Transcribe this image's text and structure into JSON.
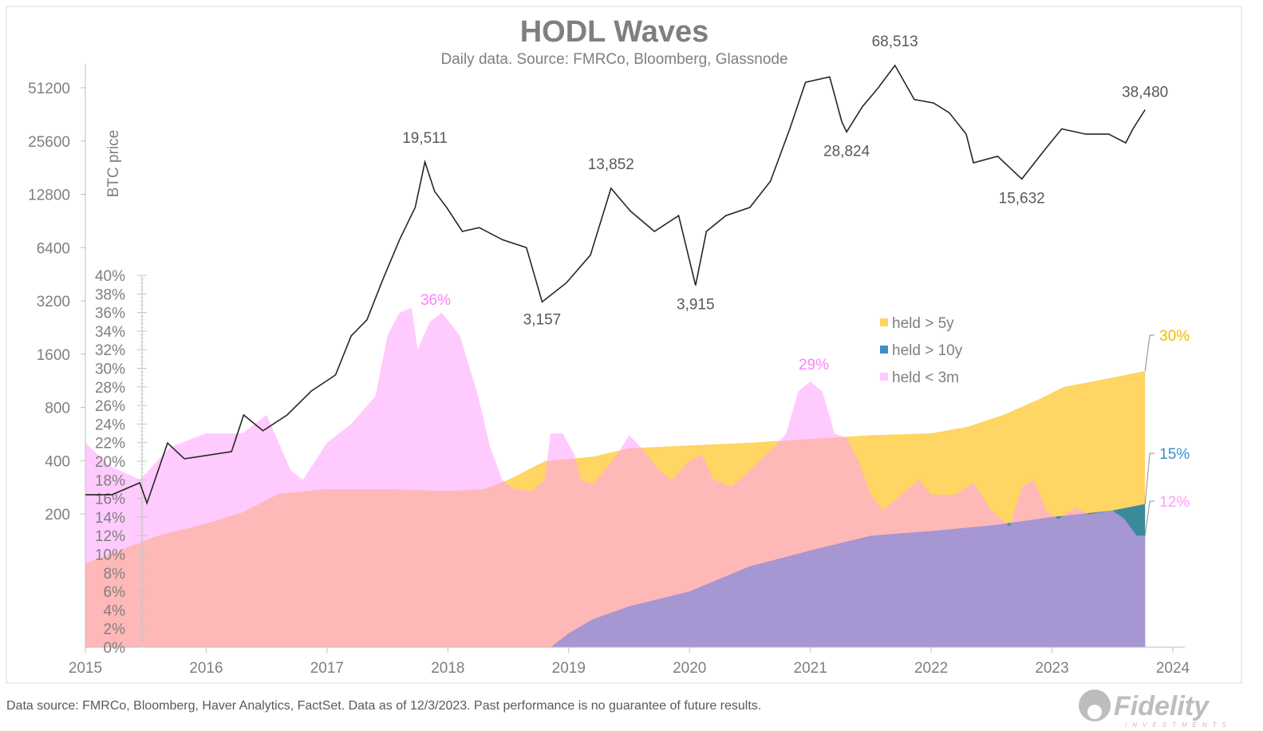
{
  "chart_data": {
    "type": "area",
    "title": "HODL Waves",
    "subtitle": "Daily data.  Source: FMRCo, Bloomberg, Glassnode",
    "xlim": [
      2015,
      2024
    ],
    "x_ticks": [
      "2015",
      "2016",
      "2017",
      "2018",
      "2019",
      "2020",
      "2021",
      "2022",
      "2023",
      "2024"
    ],
    "y_left_label": "BTC price",
    "y_left_scale": "log2",
    "y_left_ticks": [
      "200",
      "400",
      "800",
      "1600",
      "3200",
      "6400",
      "12800",
      "25600",
      "51200"
    ],
    "y_pct_ticks": [
      "0%",
      "2%",
      "4%",
      "6%",
      "8%",
      "10%",
      "12%",
      "14%",
      "16%",
      "18%",
      "20%",
      "22%",
      "24%",
      "26%",
      "28%",
      "30%",
      "32%",
      "34%",
      "36%",
      "38%",
      "40%"
    ],
    "y_pct_range": [
      0,
      40
    ],
    "legend": {
      "position": "right-center",
      "items": [
        {
          "label": "held > 5y",
          "color": "#FFD45E"
        },
        {
          "label": "held > 10y",
          "color": "#3A8FC9"
        },
        {
          "label": "held < 3m",
          "color": "#FFCBFF"
        }
      ]
    },
    "series": [
      {
        "name": "held > 5y",
        "color": "#FFD563",
        "points": [
          [
            2015.0,
            9
          ],
          [
            2015.3,
            10.5
          ],
          [
            2015.6,
            12
          ],
          [
            2016.0,
            13.3
          ],
          [
            2016.3,
            14.5
          ],
          [
            2016.6,
            16.5
          ],
          [
            2017.0,
            17
          ],
          [
            2017.5,
            17
          ],
          [
            2018.0,
            16.8
          ],
          [
            2018.3,
            17
          ],
          [
            2018.5,
            18
          ],
          [
            2018.8,
            20
          ],
          [
            2019.2,
            20.5
          ],
          [
            2019.5,
            21.4
          ],
          [
            2020.0,
            21.7
          ],
          [
            2020.5,
            22
          ],
          [
            2021.0,
            22.4
          ],
          [
            2021.5,
            22.8
          ],
          [
            2022.0,
            23
          ],
          [
            2022.3,
            23.7
          ],
          [
            2022.6,
            25
          ],
          [
            2022.9,
            26.7
          ],
          [
            2023.1,
            28
          ],
          [
            2023.5,
            29
          ],
          [
            2023.77,
            29.7
          ]
        ]
      },
      {
        "name": "held > 10y",
        "color": "#3A8A9A",
        "points": [
          [
            2015.0,
            0
          ],
          [
            2018.85,
            0
          ],
          [
            2019.0,
            1.5
          ],
          [
            2019.2,
            3
          ],
          [
            2019.5,
            4.4
          ],
          [
            2020.0,
            6
          ],
          [
            2020.5,
            8.7
          ],
          [
            2021.0,
            10.4
          ],
          [
            2021.5,
            12
          ],
          [
            2022.0,
            12.5
          ],
          [
            2022.5,
            13.1
          ],
          [
            2023.0,
            14
          ],
          [
            2023.5,
            14.7
          ],
          [
            2023.77,
            15.4
          ]
        ]
      },
      {
        "name": "held < 3m",
        "color": "#FFA0FF",
        "points": [
          [
            2015.0,
            22
          ],
          [
            2015.2,
            19.5
          ],
          [
            2015.45,
            18
          ],
          [
            2015.7,
            21.5
          ],
          [
            2016.0,
            23
          ],
          [
            2016.3,
            23
          ],
          [
            2016.5,
            25
          ],
          [
            2016.7,
            19
          ],
          [
            2016.8,
            18
          ],
          [
            2017.0,
            22
          ],
          [
            2017.2,
            24
          ],
          [
            2017.4,
            27
          ],
          [
            2017.5,
            33.5
          ],
          [
            2017.6,
            36
          ],
          [
            2017.7,
            36.5
          ],
          [
            2017.75,
            32
          ],
          [
            2017.85,
            35
          ],
          [
            2017.95,
            36
          ],
          [
            2018.1,
            33.5
          ],
          [
            2018.25,
            27
          ],
          [
            2018.35,
            21.5
          ],
          [
            2018.45,
            18
          ],
          [
            2018.55,
            17
          ],
          [
            2018.7,
            16.8
          ],
          [
            2018.8,
            18
          ],
          [
            2018.85,
            23
          ],
          [
            2018.95,
            23
          ],
          [
            2019.05,
            20.7
          ],
          [
            2019.1,
            18
          ],
          [
            2019.2,
            17.5
          ],
          [
            2019.4,
            20.7
          ],
          [
            2019.5,
            22.8
          ],
          [
            2019.6,
            21.5
          ],
          [
            2019.75,
            19
          ],
          [
            2019.85,
            18
          ],
          [
            2020.0,
            20
          ],
          [
            2020.1,
            20.7
          ],
          [
            2020.2,
            18
          ],
          [
            2020.35,
            17.3
          ],
          [
            2020.5,
            19
          ],
          [
            2020.7,
            21.5
          ],
          [
            2020.8,
            23
          ],
          [
            2020.9,
            27.5
          ],
          [
            2021.0,
            28.6
          ],
          [
            2021.1,
            27.5
          ],
          [
            2021.2,
            23
          ],
          [
            2021.3,
            22.5
          ],
          [
            2021.4,
            20
          ],
          [
            2021.5,
            16.4
          ],
          [
            2021.6,
            14.7
          ],
          [
            2021.75,
            16.4
          ],
          [
            2021.9,
            18
          ],
          [
            2022.0,
            16.4
          ],
          [
            2022.2,
            16.4
          ],
          [
            2022.35,
            17.7
          ],
          [
            2022.5,
            14.7
          ],
          [
            2022.65,
            13
          ],
          [
            2022.75,
            17.2
          ],
          [
            2022.85,
            18
          ],
          [
            2022.95,
            14.7
          ],
          [
            2023.05,
            13.8
          ],
          [
            2023.2,
            15
          ],
          [
            2023.3,
            14.3
          ],
          [
            2023.5,
            14.7
          ],
          [
            2023.6,
            13.8
          ],
          [
            2023.7,
            12
          ],
          [
            2023.77,
            12
          ]
        ]
      },
      {
        "name": "BTC price",
        "color": "#262626",
        "axis": "left",
        "points": [
          [
            2015.0,
            257
          ],
          [
            2015.22,
            257
          ],
          [
            2015.45,
            300
          ],
          [
            2015.51,
            230
          ],
          [
            2015.68,
            503
          ],
          [
            2015.82,
            410
          ],
          [
            2016.21,
            450
          ],
          [
            2016.31,
            725
          ],
          [
            2016.47,
            590
          ],
          [
            2016.67,
            725
          ],
          [
            2016.87,
            990
          ],
          [
            2017.07,
            1220
          ],
          [
            2017.2,
            2030
          ],
          [
            2017.33,
            2500
          ],
          [
            2017.46,
            4200
          ],
          [
            2017.6,
            7100
          ],
          [
            2017.73,
            10800
          ],
          [
            2017.81,
            19511
          ],
          [
            2017.89,
            13300
          ],
          [
            2017.99,
            10800
          ],
          [
            2018.12,
            7900
          ],
          [
            2018.26,
            8300
          ],
          [
            2018.45,
            7100
          ],
          [
            2018.65,
            6400
          ],
          [
            2018.78,
            3157
          ],
          [
            2018.98,
            4040
          ],
          [
            2019.18,
            5800
          ],
          [
            2019.35,
            13852
          ],
          [
            2019.51,
            10300
          ],
          [
            2019.71,
            7900
          ],
          [
            2019.91,
            9700
          ],
          [
            2020.05,
            3915
          ],
          [
            2020.14,
            7900
          ],
          [
            2020.3,
            9700
          ],
          [
            2020.5,
            10800
          ],
          [
            2020.67,
            15200
          ],
          [
            2020.83,
            30000
          ],
          [
            2020.96,
            55000
          ],
          [
            2021.16,
            59000
          ],
          [
            2021.26,
            33000
          ],
          [
            2021.3,
            28824
          ],
          [
            2021.43,
            40000
          ],
          [
            2021.56,
            51000
          ],
          [
            2021.7,
            68513
          ],
          [
            2021.86,
            44000
          ],
          [
            2022.02,
            42000
          ],
          [
            2022.15,
            37000
          ],
          [
            2022.29,
            28000
          ],
          [
            2022.35,
            19300
          ],
          [
            2022.55,
            21000
          ],
          [
            2022.75,
            15632
          ],
          [
            2022.95,
            23300
          ],
          [
            2023.08,
            30000
          ],
          [
            2023.28,
            28000
          ],
          [
            2023.47,
            28000
          ],
          [
            2023.61,
            25000
          ],
          [
            2023.67,
            30000
          ],
          [
            2023.77,
            38480
          ]
        ]
      }
    ],
    "annotations": {
      "price_labels": [
        {
          "x": 2017.81,
          "value": 19511,
          "text": "19,511"
        },
        {
          "x": 2018.78,
          "value": 3157,
          "text": "3,157"
        },
        {
          "x": 2019.35,
          "value": 13852,
          "text": "13,852"
        },
        {
          "x": 2020.05,
          "value": 3915,
          "text": "3,915"
        },
        {
          "x": 2021.3,
          "value": 28824,
          "text": "28,824"
        },
        {
          "x": 2021.7,
          "value": 68513,
          "text": "68,513"
        },
        {
          "x": 2022.75,
          "value": 15632,
          "text": "15,632"
        },
        {
          "x": 2023.77,
          "value": 38480,
          "text": "38,480"
        }
      ],
      "pct_peak_labels": [
        {
          "text": "36%",
          "color": "#FF80FF"
        },
        {
          "text": "29%",
          "color": "#FF80FF"
        }
      ],
      "end_labels": [
        {
          "text": "30%",
          "color": "#F5B800"
        },
        {
          "text": "15%",
          "color": "#3A8FC9"
        },
        {
          "text": "12%",
          "color": "#FF9CFF"
        }
      ]
    }
  },
  "footer": {
    "source": "Data source: FMRCo, Bloomberg, Haver Analytics, FactSet. Data as of 12/3/2023. Past performance is no guarantee of future results.",
    "logo": "Fidelity INVESTMENTS"
  }
}
